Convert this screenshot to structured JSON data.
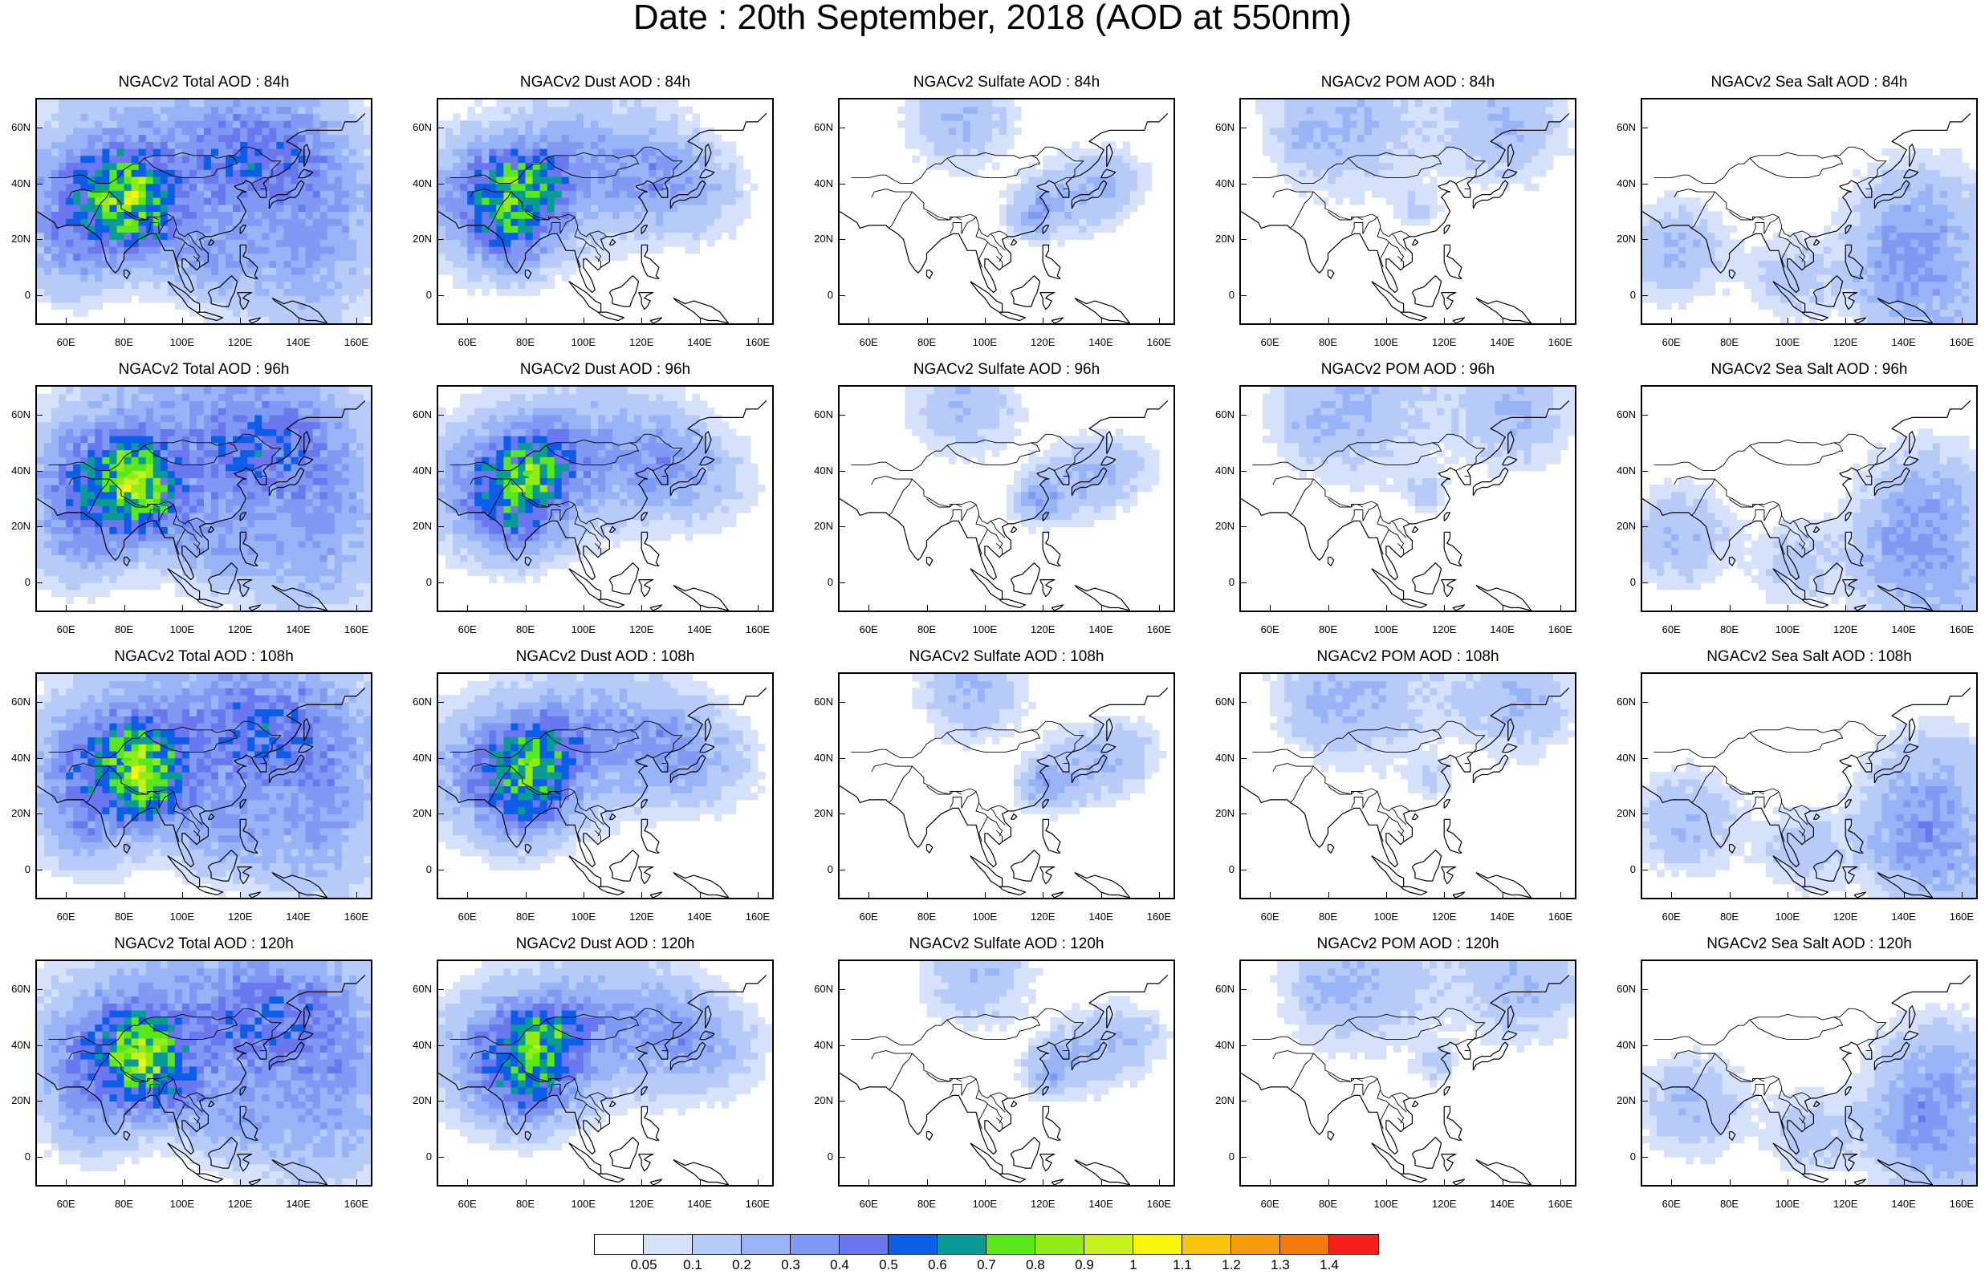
{
  "title": "Date : 20th September, 2018 (AOD at 550nm)",
  "panel_titles": [
    [
      "NGACv2 Total AOD : 84h",
      "NGACv2 Dust AOD : 84h",
      "NGACv2 Sulfate AOD : 84h",
      "NGACv2 POM AOD : 84h",
      "NGACv2 Sea Salt AOD : 84h"
    ],
    [
      "NGACv2 Total AOD : 96h",
      "NGACv2 Dust AOD : 96h",
      "NGACv2 Sulfate AOD : 96h",
      "NGACv2 POM AOD : 96h",
      "NGACv2 Sea Salt AOD : 96h"
    ],
    [
      "NGACv2 Total AOD : 108h",
      "NGACv2 Dust AOD : 108h",
      "NGACv2 Sulfate AOD : 108h",
      "NGACv2 POM AOD : 108h",
      "NGACv2 Sea Salt AOD : 108h"
    ],
    [
      "NGACv2 Total AOD : 120h",
      "NGACv2 Dust AOD : 120h",
      "NGACv2 Sulfate AOD : 120h",
      "NGACv2 POM AOD : 120h",
      "NGACv2 Sea Salt  AOD : 120h"
    ]
  ],
  "map": {
    "lon_range": [
      50,
      165
    ],
    "lat_range": [
      -10,
      70
    ],
    "lon_ticks": [
      60,
      80,
      100,
      120,
      140,
      160
    ],
    "lat_ticks": [
      0,
      20,
      40,
      60
    ],
    "lon_tick_labels": [
      "60E",
      "80E",
      "100E",
      "120E",
      "140E",
      "160E"
    ],
    "lat_tick_labels": [
      "0",
      "20N",
      "40N",
      "60N"
    ]
  },
  "colorbar": {
    "colors": [
      "#ffffff",
      "#d6e2fb",
      "#b7cbf8",
      "#98b4f6",
      "#8099f3",
      "#6a77ef",
      "#0c5de8",
      "#0a9b97",
      "#59e81a",
      "#93ec15",
      "#c7f21f",
      "#f6f50a",
      "#f6c40b",
      "#f59d0c",
      "#f37a0c",
      "#f2211c"
    ],
    "labels": [
      "0.05",
      "0.1",
      "0.2",
      "0.3",
      "0.4",
      "0.5",
      "0.6",
      "0.7",
      "0.8",
      "0.9",
      "1",
      "1.1",
      "1.2",
      "1.3",
      "1.4"
    ]
  }
}
